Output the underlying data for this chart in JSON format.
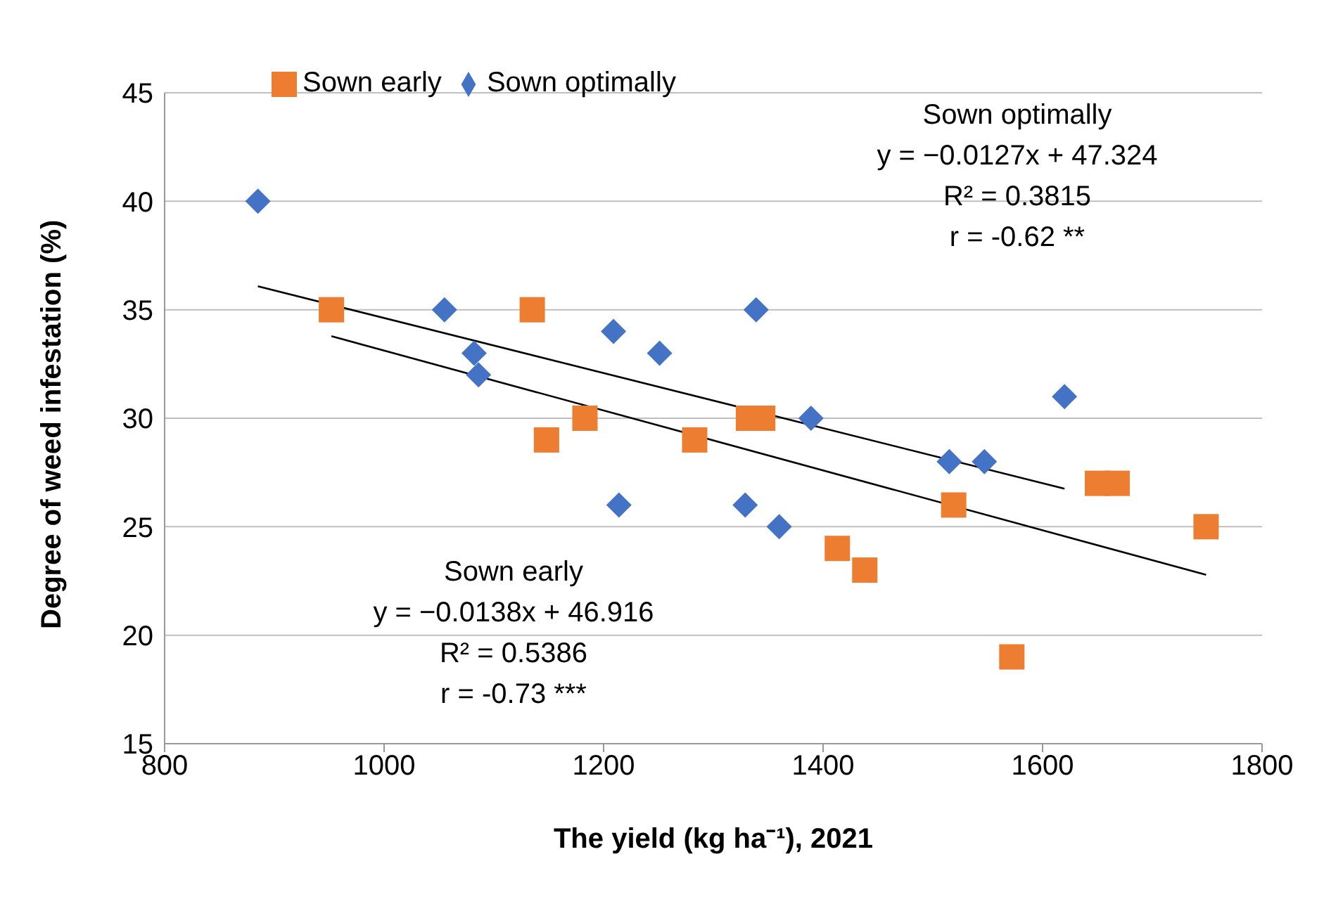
{
  "chart_data": {
    "type": "scatter",
    "xlabel": "The yield (kg ha⁻¹), 2021",
    "ylabel": "Degree of weed infestation (%)",
    "xlim": [
      800,
      1800
    ],
    "xticks": [
      800,
      1000,
      1200,
      1400,
      1600,
      1800
    ],
    "ylim": [
      15,
      45
    ],
    "yticks": [
      15,
      20,
      25,
      30,
      35,
      40,
      45
    ],
    "grid": "y",
    "legend": "top left",
    "series": [
      {
        "name": "Sown early",
        "color": "#ed7d31",
        "marker": "square",
        "x": [
          952,
          1135,
          1148,
          1183,
          1283,
          1332,
          1345,
          1413,
          1438,
          1519,
          1572,
          1650,
          1668,
          1749
        ],
        "values": [
          35,
          35,
          29,
          30,
          29,
          30,
          30,
          24,
          23,
          26,
          19,
          27,
          27,
          25
        ]
      },
      {
        "name": "Sown optimally",
        "color": "#4472c4",
        "marker": "diamond",
        "x": [
          885,
          1055,
          1082,
          1086,
          1209,
          1214,
          1251,
          1329,
          1339,
          1360,
          1389,
          1515,
          1547,
          1620
        ],
        "values": [
          40,
          35,
          33,
          32,
          34,
          26,
          33,
          26,
          35,
          25,
          30,
          28,
          28,
          31
        ]
      },
      {
        "type": "line",
        "color": "#000000",
        "marker": "none",
        "x": [
          885,
          1620
        ],
        "values": [
          36.08,
          26.75
        ]
      },
      {
        "type": "line",
        "color": "#000000",
        "marker": "none",
        "x": [
          952,
          1749
        ],
        "values": [
          33.78,
          22.78
        ]
      }
    ],
    "annotations": [
      "Sown optimally\ny = −0.0127x + 47.324\nR² = 0.3815\nr = -0.62 **",
      "Sown early\ny = −0.0138x + 46.916\nR² = 0.5386\nr = -0.73 ***"
    ]
  }
}
